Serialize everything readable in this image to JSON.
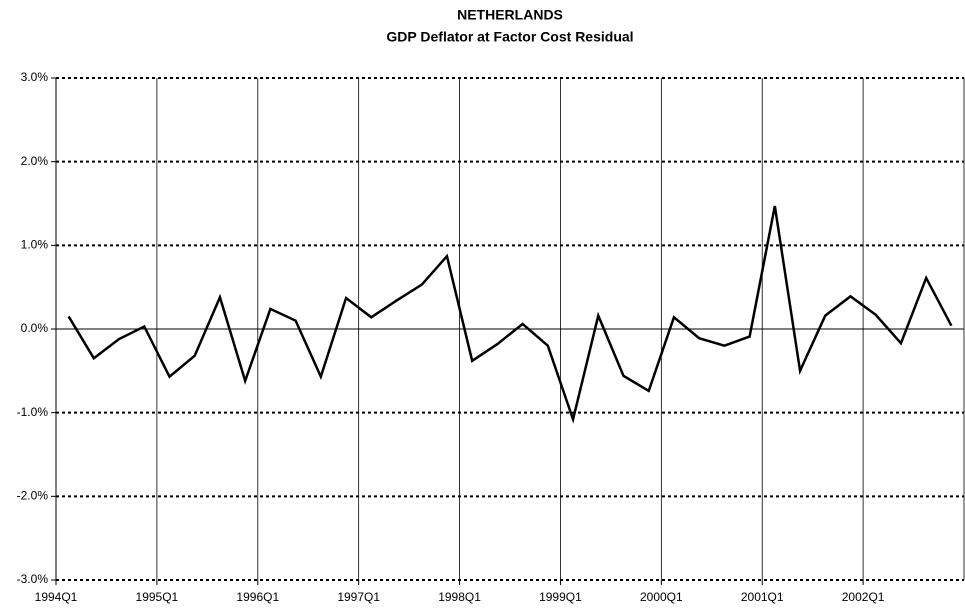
{
  "chart_data": {
    "type": "line",
    "title": "NETHERLANDS",
    "subtitle": "GDP Deflator at Factor Cost Residual",
    "categories": [
      "1994Q1",
      null,
      null,
      null,
      "1995Q1",
      null,
      null,
      null,
      "1996Q1",
      null,
      null,
      null,
      "1997Q1",
      null,
      null,
      null,
      "1998Q1",
      null,
      null,
      null,
      "1999Q1",
      null,
      null,
      null,
      "2000Q1",
      null,
      null,
      null,
      "2001Q1",
      null,
      null,
      null,
      "2002Q1",
      null,
      null,
      null
    ],
    "values": [
      0.15,
      -0.35,
      -0.12,
      0.03,
      -0.57,
      -0.32,
      0.38,
      -0.62,
      0.24,
      0.1,
      -0.57,
      0.37,
      0.14,
      0.34,
      0.53,
      0.87,
      -0.38,
      -0.18,
      0.06,
      -0.2,
      -1.08,
      0.16,
      -0.56,
      -0.74,
      0.14,
      -0.11,
      -0.2,
      -0.09,
      1.47,
      -0.5,
      0.16,
      0.39,
      0.17,
      -0.17,
      0.61,
      0.04
    ],
    "color": "#000000",
    "ylim": [
      -3,
      3
    ],
    "yticks": [
      {
        "value": -3,
        "label": "-3.0%"
      },
      {
        "value": -2,
        "label": "-2.0%"
      },
      {
        "value": -1,
        "label": "-1.0%"
      },
      {
        "value": 0,
        "label": "0.0%"
      },
      {
        "value": 1,
        "label": "1.0%"
      },
      {
        "value": 2,
        "label": "2.0%"
      },
      {
        "value": 3,
        "label": "3.0%"
      }
    ],
    "grid": true
  }
}
